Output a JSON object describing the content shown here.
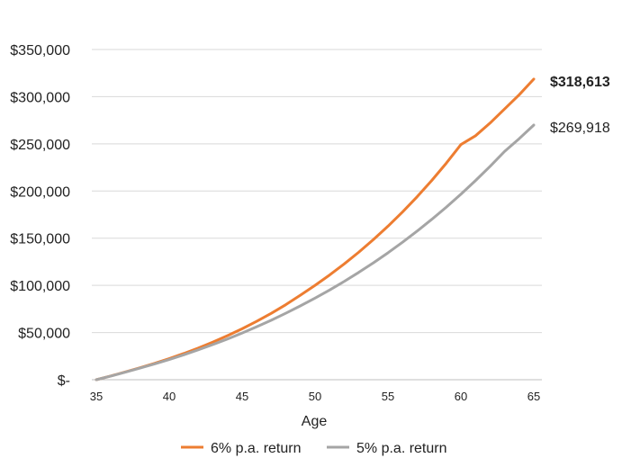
{
  "chart_data": {
    "type": "line",
    "xlabel": "Age",
    "ylabel": "",
    "title": "",
    "xlim": [
      35,
      65
    ],
    "ylim": [
      0,
      350000
    ],
    "x_ticks": [
      35,
      40,
      45,
      50,
      55,
      60,
      65
    ],
    "x_tick_labels": [
      "35",
      "40",
      "45",
      "50",
      "55",
      "60",
      "65"
    ],
    "y_ticks": [
      0,
      50000,
      100000,
      150000,
      200000,
      250000,
      300000,
      350000
    ],
    "y_tick_labels": [
      "$-",
      "$50,000",
      "$100,000",
      "$150,000",
      "$200,000",
      "$250,000",
      "$300,000",
      "$350,000"
    ],
    "grid": true,
    "legend_position": "bottom",
    "x": [
      35,
      36,
      37,
      38,
      39,
      40,
      41,
      42,
      43,
      44,
      45,
      46,
      47,
      48,
      49,
      50,
      51,
      52,
      53,
      54,
      55,
      56,
      57,
      58,
      59,
      60,
      61,
      62,
      63,
      64,
      65
    ],
    "series": [
      {
        "name": "6% p.a. return",
        "color": "#ed7d31",
        "values": [
          0,
          4000,
          8300,
          12700,
          17300,
          22400,
          27800,
          33600,
          39900,
          46700,
          54000,
          61900,
          70400,
          79600,
          89600,
          100000,
          111000,
          122700,
          135200,
          148500,
          162700,
          177800,
          193900,
          211100,
          229500,
          249200,
          258500,
          272000,
          287000,
          302000,
          318613
        ],
        "end_label": "$318,613",
        "end_label_bold": true
      },
      {
        "name": "5% p.a. return",
        "color": "#a5a5a5",
        "values": [
          0,
          3900,
          8000,
          12300,
          16700,
          21400,
          26400,
          31700,
          37300,
          43200,
          49500,
          56100,
          63100,
          70500,
          78300,
          86500,
          95100,
          104200,
          113800,
          123900,
          134500,
          145700,
          157500,
          169900,
          182900,
          196600,
          211000,
          226100,
          242000,
          255500,
          269918
        ],
        "end_label": "$269,918",
        "end_label_bold": false
      }
    ]
  }
}
